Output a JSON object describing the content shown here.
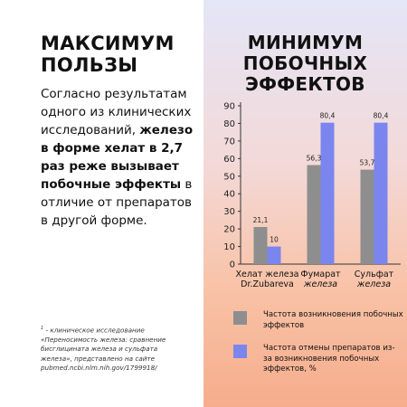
{
  "left": {
    "title_lines": [
      "МАКСИМУМ",
      "ПОЛЬЗЫ"
    ],
    "paragraph": [
      {
        "text": "Согласно результатам одного из клинических исследований, ",
        "bold": false
      },
      {
        "text": "железо в форме хелат в 2,7 раз реже вызывает побочные эффекты",
        "bold": true
      },
      {
        "text": " в отличие от препаратов в другой форме.",
        "bold": false
      }
    ],
    "footnote_mark": "1",
    "footnote": " - клиническое исследование «Переносимость железа: сравнение бисглицината железа и сульфата железа», представлено на сайте pubmed.ncbi.nlm.nih.gov/1799918/"
  },
  "right": {
    "title_lines": [
      "МИНИМУМ",
      "ПОБОЧНЫХ",
      "ЭФФЕКТОВ"
    ]
  },
  "colors": {
    "series1": "#8e8e8e",
    "series2": "#7b85ee",
    "axis": "#333333",
    "left_bg": "#ffffff",
    "gradient_top": "#e4e6f7",
    "gradient_bottom": "#f6ad8c"
  },
  "chart_data": {
    "type": "bar",
    "categories": [
      "Хелат железа\nDr.Zubareva",
      "Фумарат\nжелеза",
      "Сульфат\nжелеза"
    ],
    "series": [
      {
        "name": "Частота возникновения побочных эффектов",
        "values": [
          21.1,
          56.3,
          53.7
        ],
        "labels": [
          "21,1",
          "56,3",
          "53,7"
        ]
      },
      {
        "name": "Частота отмены препаратов из-за возникновения побочных эффектов, %",
        "values": [
          10,
          80.4,
          80.4
        ],
        "labels": [
          "10",
          "80,4",
          "80,4"
        ]
      }
    ],
    "ylim": [
      0,
      90
    ],
    "yticks": [
      0,
      10,
      20,
      30,
      40,
      50,
      60,
      70,
      80,
      90
    ],
    "legend_position": "bottom"
  }
}
